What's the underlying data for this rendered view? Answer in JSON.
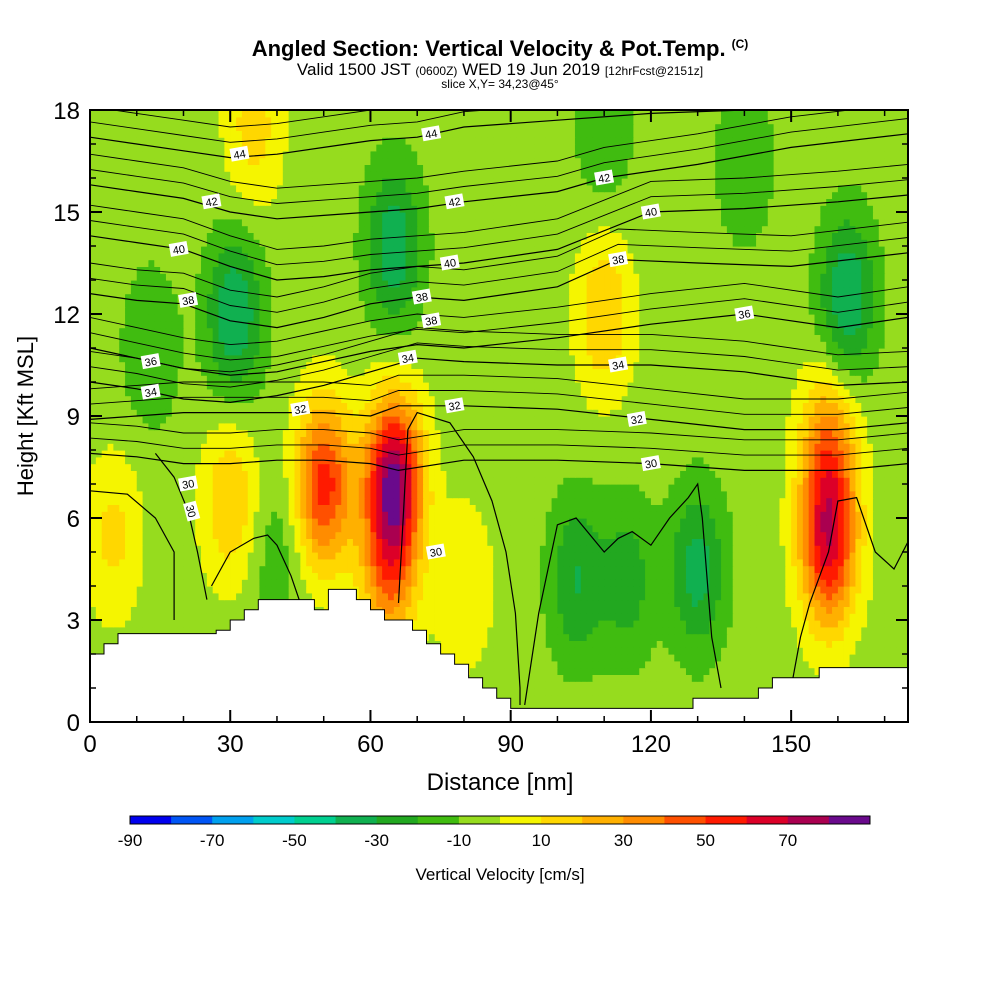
{
  "header": {
    "title": "Angled Section: Vertical Velocity & Pot.Temp.",
    "copyright": "(C)",
    "valid_prefix": "Valid 1500 JST",
    "valid_utc": "(0600Z)",
    "valid_date": "WED 19 Jun 2019",
    "forecast": "[12hrFcst@2151z]",
    "slice": "slice X,Y= 34,23@45°"
  },
  "chart_data": {
    "type": "heatmap",
    "title": "Angled Section: Vertical Velocity & Pot.Temp.",
    "xlabel": "Distance [nm]",
    "ylabel": "Height [Kft MSL]",
    "xlim": [
      0,
      175
    ],
    "ylim": [
      0,
      18
    ],
    "x_ticks": [
      0,
      30,
      60,
      90,
      120,
      150
    ],
    "y_ticks": [
      0,
      3,
      6,
      9,
      12,
      15,
      18
    ],
    "colorbar": {
      "label": "Vertical Velocity [cm/s]",
      "tick_labels": [
        -90,
        -70,
        -50,
        -30,
        -10,
        10,
        30,
        50,
        70
      ],
      "levels": [
        -90,
        -80,
        -70,
        -60,
        -50,
        -40,
        -30,
        -20,
        -10,
        0,
        10,
        20,
        30,
        40,
        50,
        60,
        70,
        80
      ],
      "colors": [
        "#0000ee",
        "#0055f5",
        "#00a0ee",
        "#00cccc",
        "#00d090",
        "#10b050",
        "#22a820",
        "#40bc10",
        "#96dc1e",
        "#f5f500",
        "#ffd700",
        "#ffb000",
        "#ff8c00",
        "#ff5000",
        "#ff1a00",
        "#dc0028",
        "#aa0050",
        "#6a0a8c"
      ]
    },
    "vertical_velocity_field": {
      "background": -5,
      "cells": [
        {
          "x": 50,
          "y": 7.0,
          "w": 60
        },
        {
          "x": 65,
          "y": 7.2,
          "w": 80
        },
        {
          "x": 64,
          "y": 4.5,
          "w": 40
        },
        {
          "x": 158,
          "y": 5.2,
          "w": 65
        },
        {
          "x": 158,
          "y": 8.0,
          "w": 40
        },
        {
          "x": 30,
          "y": 6.5,
          "w": 25
        },
        {
          "x": 31,
          "y": 12.0,
          "w": -35
        },
        {
          "x": 13,
          "y": 11.0,
          "w": -15
        },
        {
          "x": 65,
          "y": 14.0,
          "w": -32
        },
        {
          "x": 162,
          "y": 12.5,
          "w": -35
        },
        {
          "x": 130,
          "y": 4.5,
          "w": -30
        },
        {
          "x": 104,
          "y": 4.2,
          "w": -25
        },
        {
          "x": 115,
          "y": 4.2,
          "w": -20
        },
        {
          "x": 110,
          "y": 12.0,
          "w": 25
        },
        {
          "x": 40,
          "y": 5.0,
          "w": -12
        },
        {
          "x": 140,
          "y": 16.5,
          "w": -15
        },
        {
          "x": 110,
          "y": 17.5,
          "w": -15
        },
        {
          "x": 5,
          "y": 5.5,
          "w": 18
        },
        {
          "x": 35,
          "y": 17.5,
          "w": 20
        },
        {
          "x": 80,
          "y": 4.0,
          "w": 15
        }
      ]
    },
    "theta_contours": {
      "units": "K",
      "lines": [
        {
          "label": "44",
          "label_positions": [
            [
              32,
              16.7
            ],
            [
              73,
              17.3
            ]
          ],
          "points": [
            [
              0,
              17.2
            ],
            [
              10,
              17.0
            ],
            [
              20,
              16.8
            ],
            [
              30,
              16.6
            ],
            [
              40,
              16.7
            ],
            [
              50,
              16.9
            ],
            [
              60,
              17.1
            ],
            [
              70,
              17.2
            ],
            [
              80,
              17.5
            ],
            [
              100,
              17.7
            ],
            [
              120,
              17.9
            ],
            [
              140,
              18.0
            ],
            [
              175,
              18.0
            ]
          ]
        },
        {
          "label": "42",
          "label_positions": [
            [
              26,
              15.3
            ],
            [
              78,
              15.3
            ],
            [
              110,
              16.0
            ]
          ],
          "points": [
            [
              0,
              15.8
            ],
            [
              10,
              15.6
            ],
            [
              20,
              15.4
            ],
            [
              30,
              15.0
            ],
            [
              40,
              14.8
            ],
            [
              50,
              14.9
            ],
            [
              60,
              15.0
            ],
            [
              70,
              15.1
            ],
            [
              80,
              15.3
            ],
            [
              100,
              15.6
            ],
            [
              110,
              16.0
            ],
            [
              130,
              16.4
            ],
            [
              150,
              16.9
            ],
            [
              175,
              17.3
            ]
          ]
        },
        {
          "label": "40",
          "label_positions": [
            [
              19,
              13.9
            ],
            [
              77,
              13.5
            ],
            [
              120,
              15.0
            ]
          ],
          "points": [
            [
              0,
              14.3
            ],
            [
              10,
              14.1
            ],
            [
              20,
              13.9
            ],
            [
              30,
              13.4
            ],
            [
              40,
              13.0
            ],
            [
              50,
              13.1
            ],
            [
              60,
              13.3
            ],
            [
              70,
              13.4
            ],
            [
              80,
              13.5
            ],
            [
              100,
              13.9
            ],
            [
              120,
              15.0
            ],
            [
              140,
              15.1
            ],
            [
              160,
              15.3
            ],
            [
              175,
              15.5
            ]
          ]
        },
        {
          "label": "38",
          "label_positions": [
            [
              21,
              12.4
            ],
            [
              71,
              12.5
            ],
            [
              73,
              11.8
            ],
            [
              113,
              13.6
            ]
          ],
          "points": [
            [
              0,
              12.6
            ],
            [
              10,
              12.4
            ],
            [
              20,
              12.3
            ],
            [
              30,
              11.8
            ],
            [
              40,
              11.6
            ],
            [
              50,
              11.9
            ],
            [
              60,
              12.3
            ],
            [
              70,
              12.5
            ],
            [
              80,
              12.4
            ],
            [
              100,
              12.8
            ],
            [
              113,
              13.6
            ],
            [
              130,
              13.5
            ],
            [
              150,
              13.4
            ],
            [
              175,
              13.8
            ]
          ]
        },
        {
          "label": "36",
          "label_positions": [
            [
              13,
              10.6
            ],
            [
              140,
              12.0
            ]
          ],
          "points": [
            [
              0,
              11.0
            ],
            [
              10,
              10.7
            ],
            [
              20,
              10.4
            ],
            [
              30,
              10.2
            ],
            [
              40,
              10.3
            ],
            [
              50,
              10.6
            ],
            [
              60,
              10.9
            ],
            [
              70,
              11.1
            ],
            [
              80,
              11.0
            ],
            [
              100,
              11.3
            ],
            [
              120,
              11.7
            ],
            [
              140,
              12.0
            ],
            [
              160,
              11.6
            ],
            [
              175,
              11.9
            ]
          ]
        },
        {
          "label": "34",
          "label_positions": [
            [
              13,
              9.7
            ],
            [
              68,
              10.7
            ],
            [
              113,
              10.5
            ]
          ],
          "points": [
            [
              0,
              10.0
            ],
            [
              10,
              9.8
            ],
            [
              20,
              9.5
            ],
            [
              30,
              9.4
            ],
            [
              40,
              9.6
            ],
            [
              50,
              9.9
            ],
            [
              60,
              10.3
            ],
            [
              70,
              10.7
            ],
            [
              80,
              10.6
            ],
            [
              100,
              10.5
            ],
            [
              120,
              10.5
            ],
            [
              140,
              10.3
            ],
            [
              160,
              9.9
            ],
            [
              175,
              10.0
            ]
          ]
        },
        {
          "label": "32",
          "label_positions": [
            [
              45,
              9.2
            ],
            [
              78,
              9.3
            ],
            [
              117,
              8.9
            ]
          ],
          "points": [
            [
              0,
              8.9
            ],
            [
              10,
              9.0
            ],
            [
              20,
              9.1
            ],
            [
              30,
              9.1
            ],
            [
              40,
              9.1
            ],
            [
              50,
              9.1
            ],
            [
              60,
              9.0
            ],
            [
              66,
              9.3
            ],
            [
              80,
              9.3
            ],
            [
              100,
              9.2
            ],
            [
              120,
              8.9
            ],
            [
              140,
              8.6
            ],
            [
              160,
              8.6
            ],
            [
              175,
              8.8
            ]
          ]
        },
        {
          "label": "30",
          "label_positions": [
            [
              21,
              7.0
            ],
            [
              74,
              5.0
            ],
            [
              120,
              7.6
            ]
          ],
          "points": [
            [
              0,
              7.9
            ],
            [
              10,
              7.8
            ],
            [
              20,
              7.6
            ],
            [
              30,
              7.6
            ],
            [
              40,
              7.7
            ],
            [
              50,
              7.7
            ],
            [
              60,
              7.6
            ],
            [
              66,
              7.4
            ],
            [
              80,
              7.7
            ],
            [
              100,
              7.7
            ],
            [
              120,
              7.6
            ],
            [
              140,
              7.4
            ],
            [
              160,
              7.4
            ],
            [
              175,
              7.6
            ]
          ]
        }
      ],
      "near_surface_lines": [
        {
          "label": "30",
          "points": [
            [
              14,
              7.9
            ],
            [
              18,
              7.2
            ],
            [
              21,
              6.2
            ],
            [
              23,
              5.0
            ],
            [
              25,
              3.6
            ]
          ]
        },
        {
          "label": "",
          "points": [
            [
              0,
              6.8
            ],
            [
              8,
              6.7
            ],
            [
              14,
              6.0
            ],
            [
              18,
              5.0
            ],
            [
              18,
              3.0
            ]
          ]
        },
        {
          "label": "",
          "points": [
            [
              26,
              4.0
            ],
            [
              30,
              5.0
            ],
            [
              35,
              5.4
            ],
            [
              38,
              5.5
            ],
            [
              40,
              5.2
            ],
            [
              43,
              4.3
            ],
            [
              45,
              3.5
            ]
          ]
        },
        {
          "label": "",
          "points": [
            [
              66,
              3.5
            ],
            [
              67,
              6.0
            ],
            [
              68,
              8.6
            ],
            [
              70,
              9.1
            ],
            [
              77,
              8.8
            ],
            [
              82,
              7.8
            ],
            [
              86,
              6.5
            ],
            [
              89,
              5.0
            ],
            [
              91,
              3.2
            ],
            [
              92,
              1.0
            ],
            [
              92,
              0.5
            ]
          ]
        },
        {
          "label": "",
          "points": [
            [
              93,
              0.5
            ],
            [
              96,
              3.2
            ],
            [
              100,
              5.8
            ],
            [
              104,
              6.0
            ],
            [
              110,
              5.0
            ],
            [
              113,
              5.4
            ],
            [
              116,
              5.6
            ],
            [
              120,
              5.2
            ],
            [
              124,
              6.0
            ],
            [
              128,
              6.6
            ],
            [
              130,
              7.0
            ],
            [
              131,
              6.0
            ],
            [
              133,
              2.5
            ],
            [
              135,
              1.0
            ]
          ]
        },
        {
          "label": "",
          "points": [
            [
              150,
              1.0
            ],
            [
              152,
              2.5
            ],
            [
              154,
              3.5
            ],
            [
              158,
              5.0
            ],
            [
              160,
              6.5
            ],
            [
              164,
              6.6
            ],
            [
              168,
              5.0
            ],
            [
              172,
              4.5
            ],
            [
              175,
              5.3
            ]
          ]
        }
      ]
    },
    "terrain_profile": [
      [
        0,
        2.0
      ],
      [
        3,
        2.0
      ],
      [
        3,
        2.3
      ],
      [
        6,
        2.3
      ],
      [
        6,
        2.6
      ],
      [
        27,
        2.6
      ],
      [
        27,
        2.7
      ],
      [
        30,
        2.7
      ],
      [
        30,
        3.0
      ],
      [
        33,
        3.0
      ],
      [
        33,
        3.3
      ],
      [
        36,
        3.3
      ],
      [
        36,
        3.6
      ],
      [
        48,
        3.6
      ],
      [
        48,
        3.3
      ],
      [
        51,
        3.3
      ],
      [
        51,
        3.9
      ],
      [
        57,
        3.9
      ],
      [
        57,
        3.6
      ],
      [
        60,
        3.6
      ],
      [
        60,
        3.3
      ],
      [
        63,
        3.3
      ],
      [
        63,
        3.0
      ],
      [
        69,
        3.0
      ],
      [
        69,
        2.7
      ],
      [
        72,
        2.7
      ],
      [
        72,
        2.3
      ],
      [
        75,
        2.3
      ],
      [
        75,
        2.0
      ],
      [
        78,
        2.0
      ],
      [
        78,
        1.7
      ],
      [
        81,
        1.7
      ],
      [
        81,
        1.3
      ],
      [
        84,
        1.3
      ],
      [
        84,
        1.0
      ],
      [
        87,
        1.0
      ],
      [
        87,
        0.7
      ],
      [
        90,
        0.7
      ],
      [
        90,
        0.4
      ],
      [
        129,
        0.4
      ],
      [
        129,
        0.7
      ],
      [
        143,
        0.7
      ],
      [
        143,
        1.0
      ],
      [
        146,
        1.0
      ],
      [
        146,
        1.3
      ],
      [
        156,
        1.3
      ],
      [
        156,
        1.6
      ],
      [
        175,
        1.6
      ]
    ]
  }
}
